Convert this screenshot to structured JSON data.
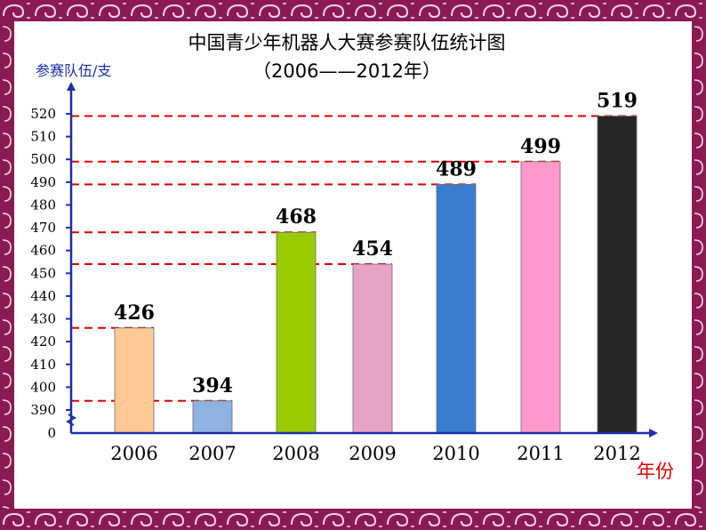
{
  "chart_data": {
    "type": "bar",
    "title": "中国青少年机器人大赛参赛队伍统计图",
    "subtitle": "（2006——2012年）",
    "ylabel": "参赛队伍/支",
    "xlabel": "年份",
    "categories": [
      "2006",
      "2007",
      "2008",
      "2009",
      "2010",
      "2011",
      "2012"
    ],
    "values": [
      426,
      394,
      468,
      454,
      489,
      499,
      519
    ],
    "y_ticks": [
      "520",
      "510",
      "500",
      "490",
      "480",
      "470",
      "460",
      "450",
      "440",
      "430",
      "420",
      "410",
      "400",
      "390",
      "0"
    ],
    "y_axis_break": "390",
    "ylim": [
      390,
      520
    ],
    "gridlines": "dashed-red-to-bar-tops",
    "colors": {
      "bars": [
        "#fec995",
        "#8eb3e2",
        "#99cc00",
        "#e5a4c6",
        "#3a7ccf",
        "#ff99cc",
        "#262626"
      ],
      "axis": "#1a2fa8",
      "guide": "#e00000",
      "frame": "#8a1b52"
    }
  }
}
